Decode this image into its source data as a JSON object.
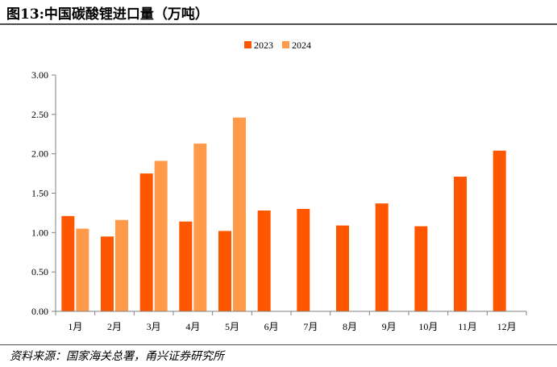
{
  "header": {
    "title": "图13:中国碳酸锂进口量（万吨）"
  },
  "footer": {
    "source": "资料来源：国家海关总署，甬兴证券研究所"
  },
  "chart_data": {
    "type": "bar",
    "title": "",
    "xlabel": "",
    "ylabel": "",
    "ylim": [
      0,
      3
    ],
    "yticks": [
      "0.00",
      "0.50",
      "1.00",
      "1.50",
      "2.00",
      "2.50",
      "3.00"
    ],
    "categories": [
      "1月",
      "2月",
      "3月",
      "4月",
      "5月",
      "6月",
      "7月",
      "8月",
      "9月",
      "10月",
      "11月",
      "12月"
    ],
    "series": [
      {
        "name": "2023",
        "color": "#FF5600",
        "values": [
          1.21,
          0.95,
          1.75,
          1.14,
          1.02,
          1.28,
          1.3,
          1.09,
          1.37,
          1.08,
          1.71,
          2.04
        ]
      },
      {
        "name": "2024",
        "color": "#FF9A4A",
        "values": [
          1.05,
          1.16,
          1.91,
          2.13,
          2.46,
          null,
          null,
          null,
          null,
          null,
          null,
          null
        ]
      }
    ],
    "grid": false,
    "legend_position": "top-center"
  }
}
